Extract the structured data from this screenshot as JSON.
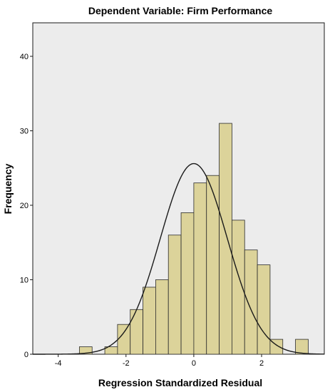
{
  "chart_data": {
    "type": "bar",
    "title": "Dependent Variable: Firm Performance",
    "xlabel": "Regression Standardized Residual",
    "ylabel": "Frequency",
    "xlim": [
      -4.75,
      3.85
    ],
    "ylim": [
      0,
      44.5
    ],
    "x_ticks": [
      -4,
      -2,
      0,
      2
    ],
    "x_tick_labels": [
      "-4",
      "-2",
      "0",
      "2"
    ],
    "y_ticks": [
      0,
      10,
      20,
      30,
      40
    ],
    "y_tick_labels": [
      "0",
      "10",
      "20",
      "30",
      "40"
    ],
    "bin_width": 0.375,
    "bins": [
      {
        "start": -3.375,
        "count": 1
      },
      {
        "start": -3.0,
        "count": 0
      },
      {
        "start": -2.625,
        "count": 1
      },
      {
        "start": -2.25,
        "count": 4
      },
      {
        "start": -1.875,
        "count": 6
      },
      {
        "start": -1.5,
        "count": 9
      },
      {
        "start": -1.125,
        "count": 10
      },
      {
        "start": -0.75,
        "count": 16
      },
      {
        "start": -0.375,
        "count": 19
      },
      {
        "start": 0.0,
        "count": 23
      },
      {
        "start": 0.375,
        "count": 24
      },
      {
        "start": 0.75,
        "count": 31
      },
      {
        "start": 1.125,
        "count": 18
      },
      {
        "start": 1.5,
        "count": 14
      },
      {
        "start": 1.875,
        "count": 12
      },
      {
        "start": 2.25,
        "count": 2
      },
      {
        "start": 2.625,
        "count": 0
      },
      {
        "start": 3.0,
        "count": 2
      }
    ],
    "normal_curve": {
      "mean": 0.0,
      "sd": 0.99,
      "peak": 25.6
    },
    "bar_color": "#dcd39a",
    "bar_edge_color": "#2b2b2b",
    "plot_background": "#ececec",
    "grid": false,
    "legend": "none"
  }
}
